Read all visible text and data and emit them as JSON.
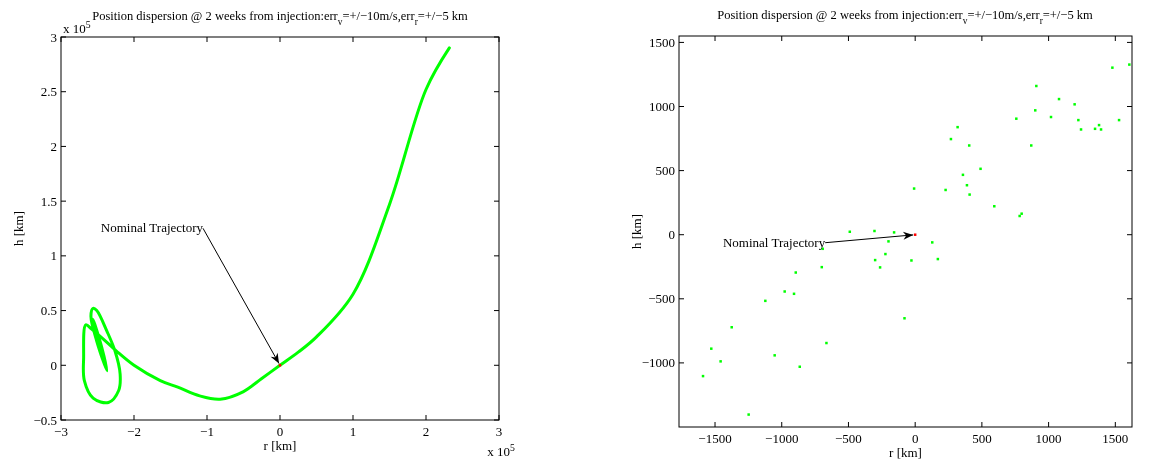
{
  "chart_data": [
    {
      "type": "line",
      "title": "Position dispersion @ 2 weeks from injection:err$_{v}$=+/−10m/s,err$_{r}$=+/−5 km",
      "xlabel": "r [km]",
      "ylabel": "h [km]",
      "xlim": [
        -3,
        3
      ],
      "ylim": [
        -0.5,
        3
      ],
      "xticks": [
        -3,
        -2,
        -1,
        0,
        1,
        2,
        3
      ],
      "yticks": [
        -0.5,
        0,
        0.5,
        1,
        1.5,
        2,
        2.5,
        3
      ],
      "grid": false,
      "annotations": [
        "x 10$^{5}$",
        "x 10$^{5}$",
        {
          "text": "Nominal Trajectory",
          "x": 0,
          "y": 0
        }
      ],
      "series": [
        {
          "color": "#00ff00",
          "marker": "none",
          "line_style": "solid",
          "x": [
            2.32,
            2.0,
            1.5,
            1.0,
            0.5,
            0.25,
            0,
            -0.25,
            -0.5,
            -0.82,
            -1.1,
            -1.4,
            -1.64,
            -2.0,
            -2.24,
            -2.42,
            -2.58,
            -2.66,
            -2.69,
            -2.68,
            -2.56,
            -2.35,
            -2.21,
            -2.19,
            -2.26,
            -2.37,
            -2.51,
            -2.56,
            -2.59,
            -2.51,
            -2.37,
            -2.44,
            -2.56,
            -2.49,
            -2.4
          ],
          "values": [
            2.9,
            2.52,
            1.47,
            0.65,
            0.26,
            0.12,
            0,
            -0.12,
            -0.24,
            -0.31,
            -0.28,
            -0.2,
            -0.14,
            0.0,
            0.13,
            0.24,
            0.33,
            0.37,
            0.07,
            -0.14,
            -0.3,
            -0.34,
            -0.23,
            -0.08,
            0.13,
            0.31,
            0.5,
            0.52,
            0.45,
            0.22,
            -0.05,
            0.16,
            0.42,
            0.22,
            0.01
          ]
        },
        {
          "type": "scatter",
          "color": "#ff0000",
          "marker": "square",
          "x": [
            0
          ],
          "values": [
            0
          ]
        }
      ]
    },
    {
      "type": "scatter",
      "title": "Position dispersion @ 2 weeks from injection:err$_{v}$=+/−10m/s,err$_{r}$=+/−5 km",
      "xlabel": "r [km]",
      "ylabel": "h [km]",
      "xlim": [
        -1770,
        1625
      ],
      "ylim": [
        -1500,
        1550
      ],
      "xticks": [
        -1500,
        -1000,
        -500,
        0,
        500,
        1000,
        1500
      ],
      "yticks": [
        -1000,
        -500,
        0,
        500,
        1000,
        1500
      ],
      "grid": false,
      "marker": "square",
      "annotations": [
        {
          "text": "Nominal Trajectory",
          "x": 0,
          "y": 0
        }
      ],
      "series": [
        {
          "color": "#00ff00",
          "x": [
            1605,
            1478,
            908,
            1078,
            1195,
            900,
            1018,
            758,
            1223,
            1528,
            318,
            1378,
            1348,
            1243,
            1393,
            268,
            405,
            870,
            490,
            358,
            388,
            -8,
            228,
            408,
            593,
            798,
            783,
            -490,
            -305,
            -158,
            -200,
            128,
            -693,
            -223,
            -300,
            -28,
            170,
            -263,
            -700,
            -895,
            -978,
            -908,
            -1123,
            -80,
            -1375,
            -665,
            -1528,
            -1053,
            -1458,
            -865,
            -1590,
            -1248
          ],
          "values": [
            1327,
            1303,
            1160,
            1058,
            1017,
            970,
            918,
            905,
            894,
            894,
            839,
            855,
            826,
            821,
            821,
            746,
            696,
            696,
            514,
            467,
            386,
            360,
            349,
            313,
            222,
            164,
            146,
            23,
            29,
            18,
            -52,
            -60,
            -110,
            -151,
            -198,
            -201,
            -190,
            -255,
            -253,
            -295,
            -443,
            -461,
            -516,
            -652,
            -722,
            -845,
            -889,
            -941,
            -988,
            -1030,
            -1103,
            -1403
          ]
        },
        {
          "color": "#ff0000",
          "x": [
            0
          ],
          "values": [
            0
          ]
        }
      ]
    }
  ]
}
